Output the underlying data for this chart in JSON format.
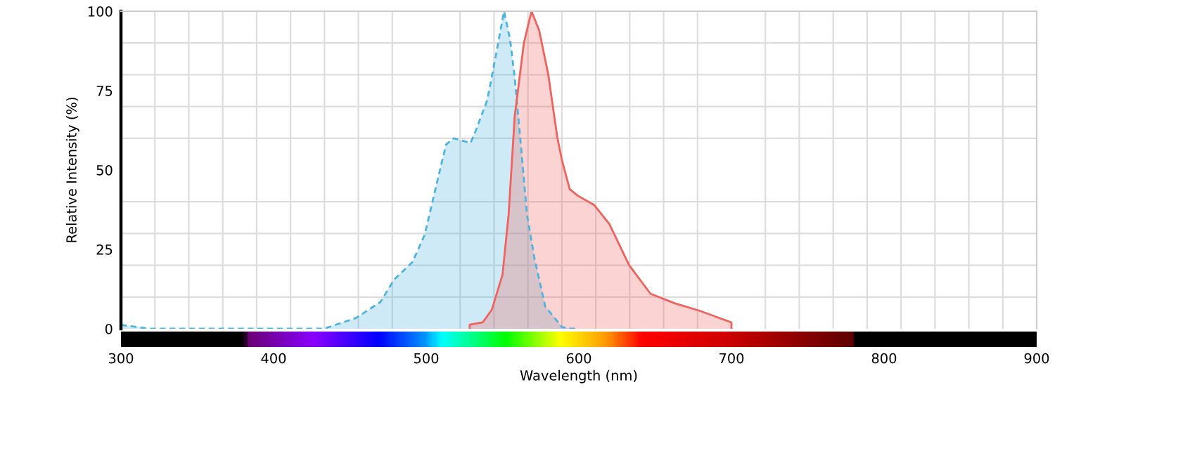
{
  "chart_data": {
    "type": "area",
    "xlabel": "Wavelength (nm)",
    "ylabel": "Relative Intensity (%)",
    "xlim": [
      300,
      900
    ],
    "xticks": [
      300,
      400,
      500,
      600,
      700,
      800,
      900
    ],
    "ylim": [
      0,
      100
    ],
    "yticks": [
      0,
      25,
      50,
      75,
      100
    ],
    "grid": true,
    "legend": false,
    "series": [
      {
        "color": "#4fb3e0",
        "line_style": "dashed",
        "x": [
          300,
          319,
          433,
          454,
          470,
          479,
          491,
          499,
          506,
          513,
          518,
          529,
          532,
          540,
          546,
          551,
          555,
          558,
          562,
          566,
          571,
          578,
          589,
          596,
          600
        ],
        "values": [
          1.2,
          0,
          0,
          3.4,
          8.4,
          15.5,
          21,
          29.6,
          43.9,
          58,
          60,
          58.5,
          61.8,
          72,
          87,
          100,
          91,
          79,
          58,
          36,
          22,
          7,
          0.5,
          0,
          0
        ]
      },
      {
        "color": "#f0625e",
        "line_style": "solid",
        "x": [
          528.5,
          528.5,
          537,
          543,
          550,
          554,
          558,
          564,
          569,
          574,
          580,
          586,
          589,
          594,
          599,
          610,
          620,
          633,
          647,
          663,
          679,
          700,
          700
        ],
        "values": [
          0,
          1.3,
          2,
          6,
          17,
          36,
          67,
          90,
          100,
          94,
          80,
          60,
          53,
          44,
          42,
          39,
          33,
          20,
          11,
          8,
          5.7,
          2,
          0
        ]
      }
    ]
  }
}
